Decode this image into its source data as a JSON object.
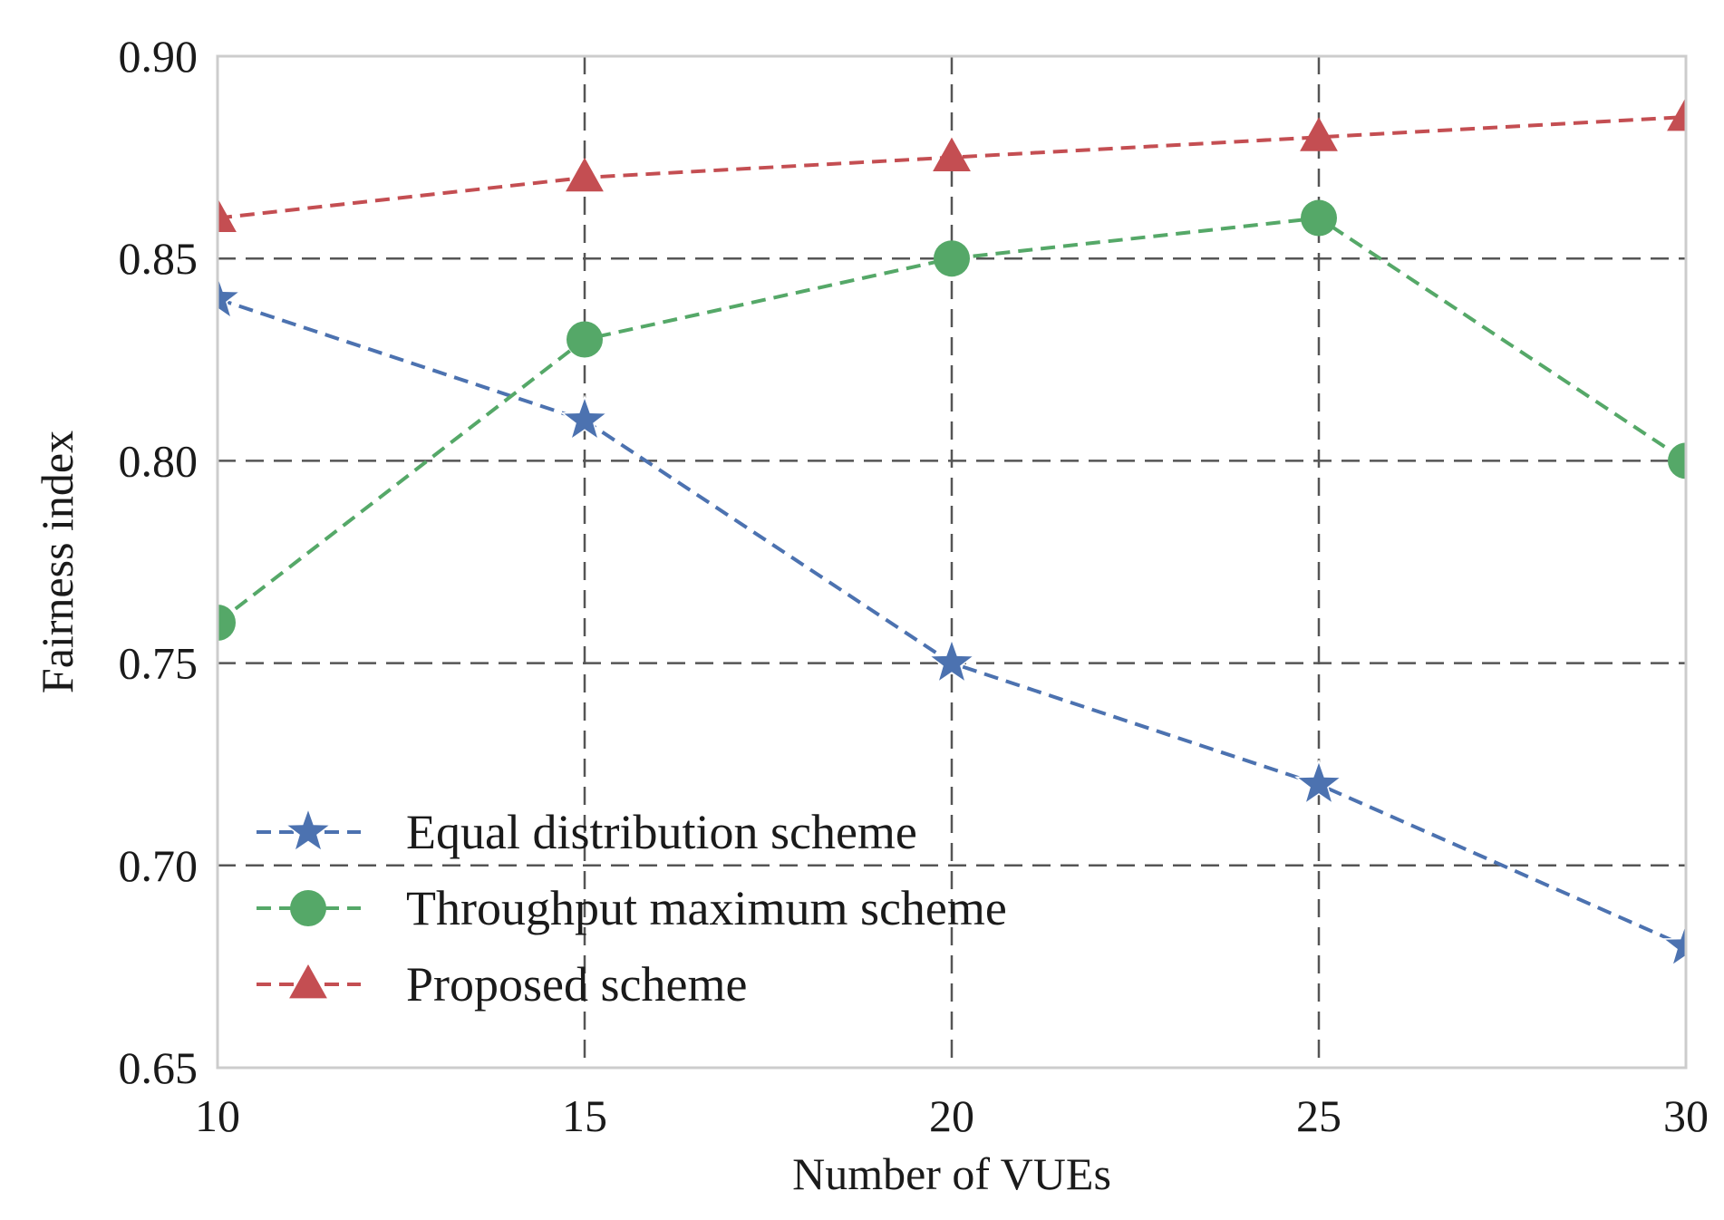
{
  "chart_data": {
    "type": "line",
    "title": "",
    "xlabel": "Number of VUEs",
    "ylabel": "Fairness index",
    "x": [
      10,
      15,
      20,
      25,
      30
    ],
    "xticks": [
      "10",
      "15",
      "20",
      "25",
      "30"
    ],
    "yticks": [
      "0.65",
      "0.70",
      "0.75",
      "0.80",
      "0.85",
      "0.90"
    ],
    "xlim": [
      10,
      30
    ],
    "ylim": [
      0.65,
      0.9
    ],
    "grid": true,
    "legend_position": "bottom-left",
    "series": [
      {
        "name": "Equal distribution scheme",
        "marker": "star",
        "color": "#4c72b0",
        "values": [
          0.84,
          0.81,
          0.75,
          0.72,
          0.68
        ]
      },
      {
        "name": "Throughput maximum scheme",
        "marker": "circle",
        "color": "#55a868",
        "values": [
          0.76,
          0.83,
          0.85,
          0.86,
          0.8
        ]
      },
      {
        "name": "Proposed scheme",
        "marker": "triangle",
        "color": "#c44e52",
        "values": [
          0.86,
          0.87,
          0.875,
          0.88,
          0.885
        ]
      }
    ]
  }
}
